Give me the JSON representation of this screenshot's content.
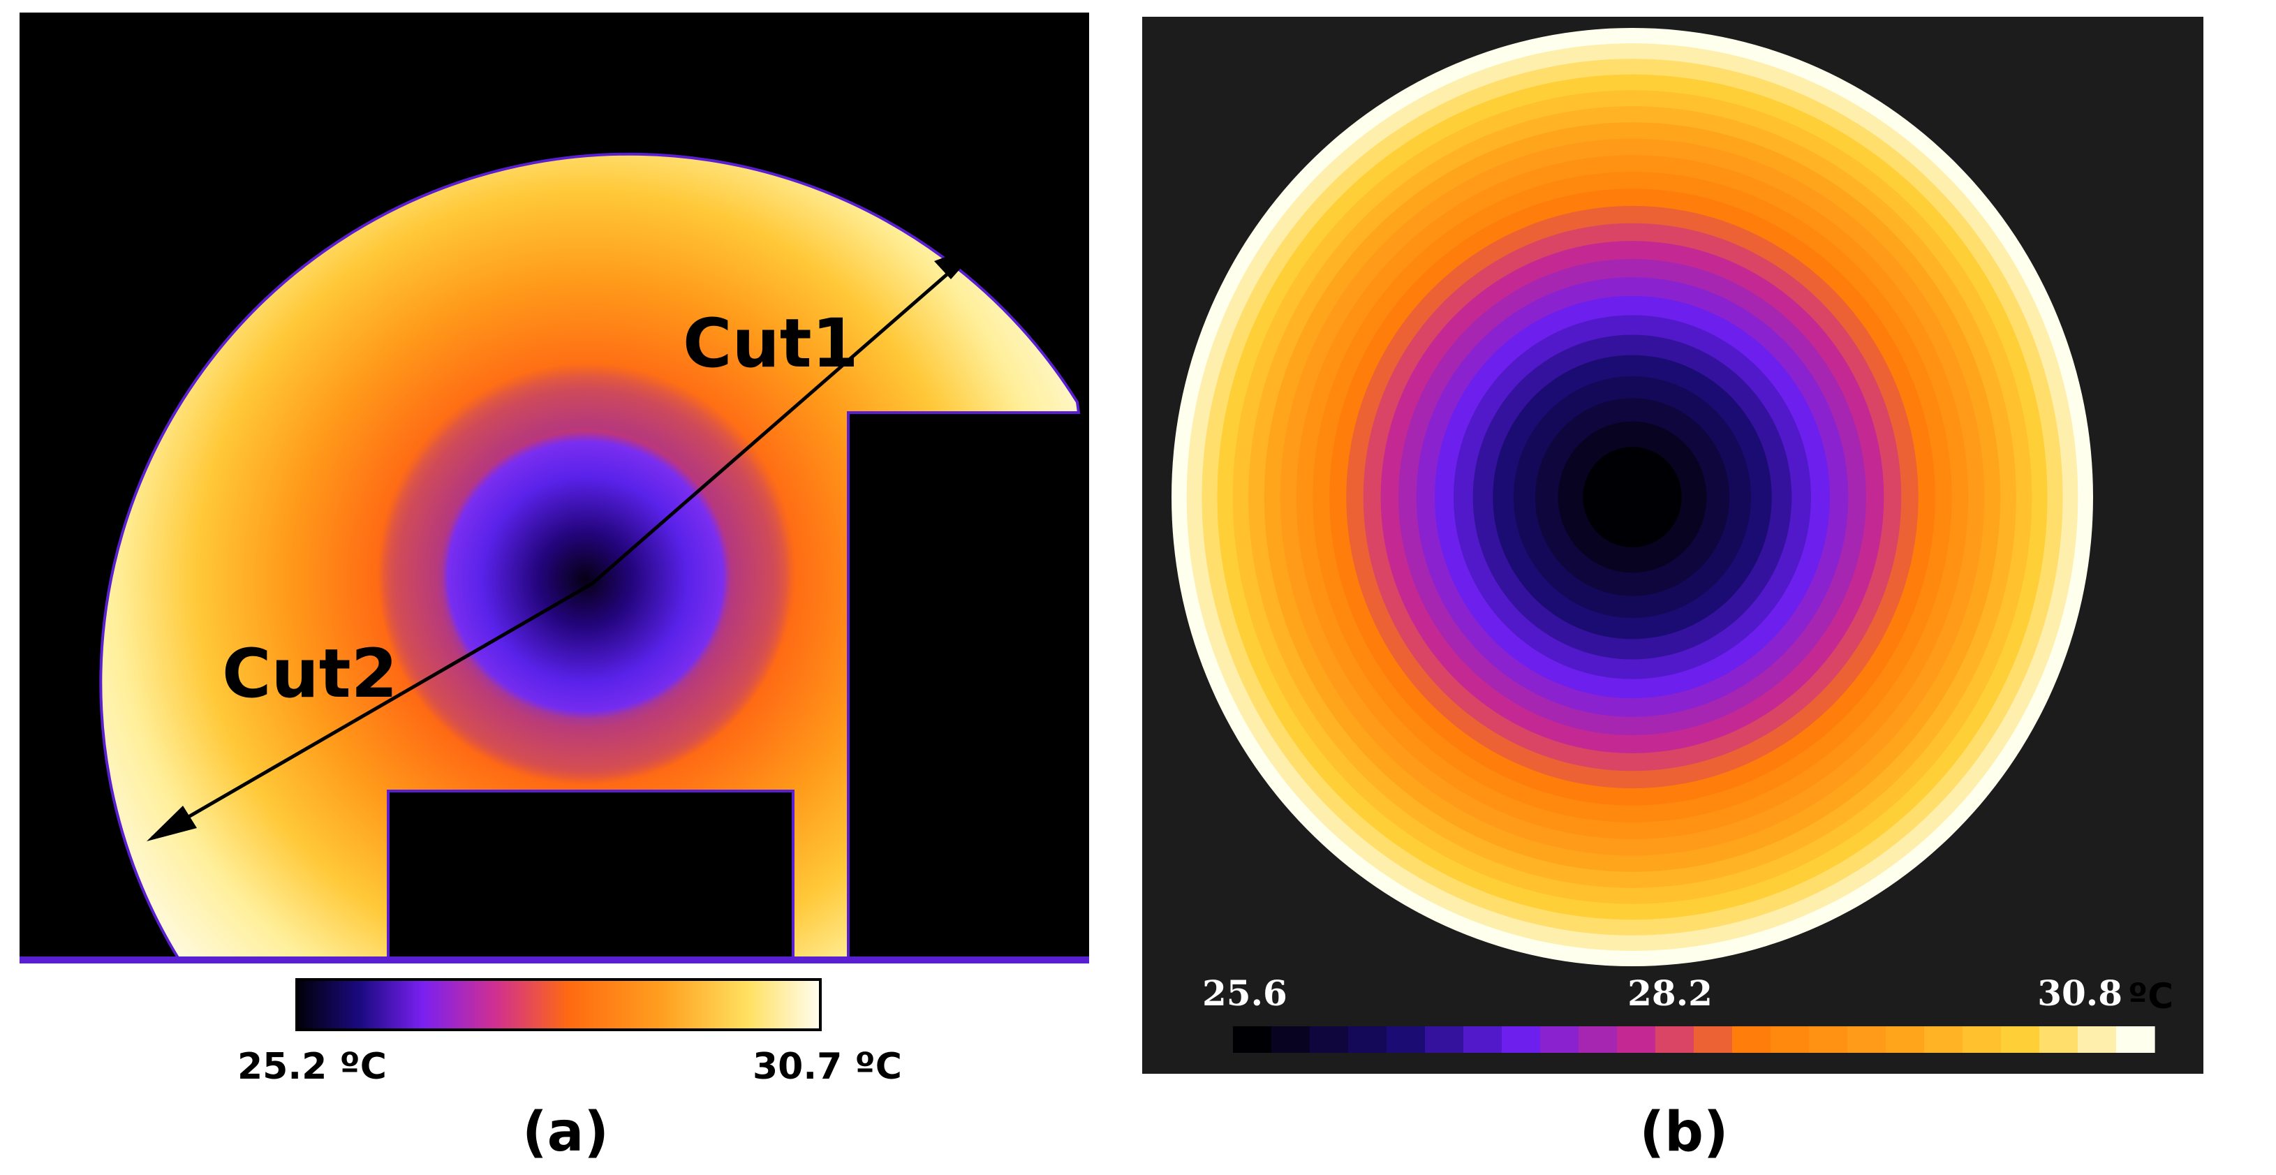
{
  "panel_a": {
    "cut1_label": "Cut1",
    "cut2_label": "Cut2",
    "scale_min": "25.2 ºC",
    "scale_max": "30.7 ºC",
    "caption": "(a)"
  },
  "panel_b": {
    "scale_min": "25.6",
    "scale_mid": "28.2",
    "scale_max": "30.8",
    "unit": "ºC",
    "caption": "(b)"
  },
  "colors": {
    "background": "#000000",
    "panel_b_background": "#1c1c1c",
    "cold": "#000004",
    "violet": "#6a1ff0",
    "magenta": "#c8298f",
    "orange": "#ff7d0a",
    "yellow": "#ffd23a",
    "hot": "#ffffee"
  },
  "icons": [
    "double-arrow-icon"
  ]
}
